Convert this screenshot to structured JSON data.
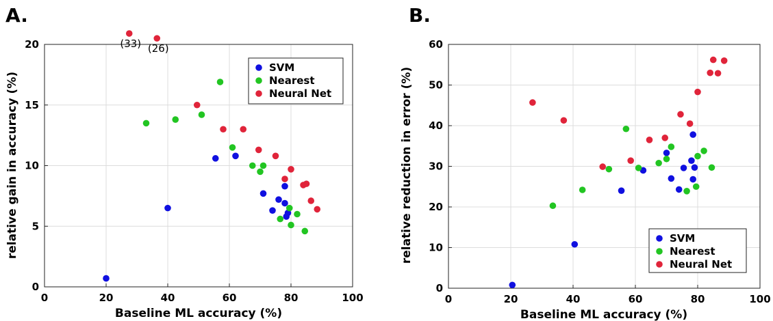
{
  "colors": {
    "SVM": "#1010e0",
    "Nearest": "#22c522",
    "Neural Net": "#e0243a"
  },
  "chart_data": [
    {
      "panel": "A.",
      "type": "scatter",
      "xlabel": "Baseline ML accuracy (%)",
      "ylabel": "relative gain in accuracy (%)",
      "xlim": [
        0,
        100
      ],
      "ylim": [
        0,
        20
      ],
      "xticks": [
        "0",
        "20",
        "40",
        "60",
        "80",
        "100"
      ],
      "yticks": [
        "0",
        "5",
        "10",
        "15",
        "20"
      ],
      "grid": true,
      "legend_position": "top-right",
      "annotations": [
        {
          "text": "(33)",
          "x": 27.5,
          "y": 20.9
        },
        {
          "text": "(26)",
          "x": 36.5,
          "y": 20.5
        }
      ],
      "series": [
        {
          "name": "SVM",
          "color": "#1010e0",
          "points": [
            [
              20,
              0.7
            ],
            [
              40,
              6.5
            ],
            [
              55.5,
              10.6
            ],
            [
              62,
              10.8
            ],
            [
              71,
              7.7
            ],
            [
              74,
              6.3
            ],
            [
              76,
              7.2
            ],
            [
              78,
              8.3
            ],
            [
              78,
              6.9
            ],
            [
              78.5,
              5.8
            ],
            [
              79,
              6.1
            ]
          ]
        },
        {
          "name": "Nearest",
          "color": "#22c522",
          "points": [
            [
              33,
              13.5
            ],
            [
              42.5,
              13.8
            ],
            [
              51,
              14.2
            ],
            [
              57,
              16.9
            ],
            [
              61,
              11.5
            ],
            [
              67.5,
              10.0
            ],
            [
              70,
              9.5
            ],
            [
              71,
              10.0
            ],
            [
              76.5,
              5.6
            ],
            [
              79.5,
              6.5
            ],
            [
              80,
              5.1
            ],
            [
              82,
              6.0
            ],
            [
              84.5,
              4.6
            ]
          ]
        },
        {
          "name": "Neural Net",
          "color": "#e0243a",
          "points": [
            [
              27.5,
              20.9
            ],
            [
              36.5,
              20.5
            ],
            [
              49.5,
              15.0
            ],
            [
              58,
              13.0
            ],
            [
              64.5,
              13.0
            ],
            [
              69.5,
              11.3
            ],
            [
              75,
              10.8
            ],
            [
              78,
              8.9
            ],
            [
              80,
              9.7
            ],
            [
              84,
              8.4
            ],
            [
              85,
              8.5
            ],
            [
              86.5,
              7.1
            ],
            [
              88.5,
              6.4
            ]
          ]
        }
      ]
    },
    {
      "panel": "B.",
      "type": "scatter",
      "xlabel": "Baseline ML accuracy (%)",
      "ylabel": "relative reduction in error (%)",
      "xlim": [
        0,
        100
      ],
      "ylim": [
        0,
        60
      ],
      "xticks": [
        "0",
        "20",
        "40",
        "60",
        "80",
        "100"
      ],
      "yticks": [
        "0",
        "10",
        "20",
        "30",
        "40",
        "50",
        "60"
      ],
      "grid": true,
      "legend_position": "bottom-right",
      "series": [
        {
          "name": "SVM",
          "color": "#1010e0",
          "points": [
            [
              20.5,
              0.8
            ],
            [
              40.5,
              10.8
            ],
            [
              55.5,
              24.0
            ],
            [
              62.5,
              29.0
            ],
            [
              70,
              33.3
            ],
            [
              71.5,
              27.0
            ],
            [
              74,
              24.3
            ],
            [
              75.5,
              29.6
            ],
            [
              78,
              31.4
            ],
            [
              78.5,
              37.8
            ],
            [
              78.5,
              26.8
            ],
            [
              79,
              29.7
            ]
          ]
        },
        {
          "name": "Nearest",
          "color": "#22c522",
          "points": [
            [
              33.5,
              20.3
            ],
            [
              43,
              24.2
            ],
            [
              51.5,
              29.3
            ],
            [
              57,
              39.2
            ],
            [
              61,
              29.6
            ],
            [
              67.5,
              30.8
            ],
            [
              70,
              31.8
            ],
            [
              71.5,
              34.8
            ],
            [
              76.5,
              23.9
            ],
            [
              79.5,
              25.0
            ],
            [
              80,
              32.5
            ],
            [
              82,
              33.8
            ],
            [
              84.5,
              29.7
            ]
          ]
        },
        {
          "name": "Neural Net",
          "color": "#e0243a",
          "points": [
            [
              27,
              45.7
            ],
            [
              37,
              41.3
            ],
            [
              49.5,
              29.9
            ],
            [
              58.5,
              31.4
            ],
            [
              64.5,
              36.5
            ],
            [
              69.5,
              37.0
            ],
            [
              74.5,
              42.8
            ],
            [
              77.5,
              40.5
            ],
            [
              80,
              48.3
            ],
            [
              84,
              53.0
            ],
            [
              85,
              56.2
            ],
            [
              86.5,
              52.9
            ],
            [
              88.5,
              56.0
            ]
          ]
        }
      ]
    }
  ]
}
